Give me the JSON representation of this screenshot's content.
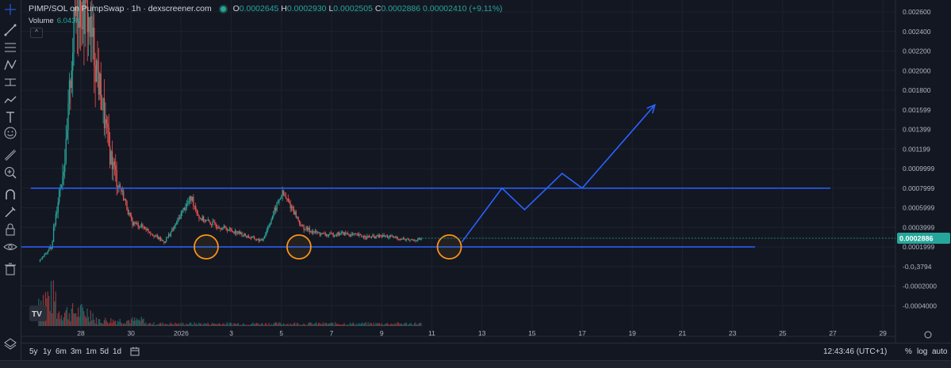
{
  "header": {
    "title": "PIMP/SOL on PumpSwap · 1h · dexscreener.com",
    "o_label": "O",
    "o_value": "0.0002645",
    "h_label": "H",
    "h_value": "0.0002930",
    "l_label": "L",
    "l_value": "0.0002505",
    "c_label": "C",
    "c_value": "0.0002886",
    "change": "0.00002410 (+9.11%)",
    "volume_label": "Volume",
    "volume_value": "6.043K",
    "collapse_glyph": "^"
  },
  "toolbar": {
    "icons": [
      "crosshair-icon",
      "trend-line-icon",
      "fib-retracement-icon",
      "pattern-icon",
      "prediction-icon",
      "path-icon",
      "text-icon",
      "emoji-icon",
      "ruler-icon",
      "zoom-in-icon",
      "magnet-icon",
      "lock-drawings-icon",
      "lock-icon",
      "eye-icon",
      "trash-icon",
      "layers-icon"
    ]
  },
  "bottom_bar": {
    "ranges": [
      "5y",
      "1y",
      "6m",
      "3m",
      "1m",
      "5d",
      "1d"
    ],
    "calendar_icon": "calendar-range-icon",
    "time": "12:43:46 (UTC+1)",
    "percent_label": "%",
    "log_label": "log",
    "auto_label": "auto"
  },
  "colors": {
    "background": "#131722",
    "up": "#26a69a",
    "down": "#ef5350",
    "drawing": "#2962ff",
    "circle": "#f7931a",
    "last_price_bg": "#26a69a"
  },
  "chart_data": {
    "type": "candlestick",
    "title": "PIMP/SOL on PumpSwap · 1h · dexscreener.com",
    "x_tick_labels": [
      "28",
      "30",
      "2026",
      "3",
      "5",
      "7",
      "9",
      "11",
      "13",
      "15",
      "17",
      "19",
      "21",
      "23",
      "25",
      "27",
      "29"
    ],
    "y_tick_labels": [
      "0.002600",
      "0.002400",
      "0.002200",
      "0.002000",
      "0.001800",
      "0.001599",
      "0.001399",
      "0.001199",
      "0.0009999",
      "0.0007999",
      "0.0005999",
      "0.0003999",
      "0.0001999",
      "-0.0₁3794",
      "-0.0002000",
      "-0.0004000"
    ],
    "y_ticks": [
      0.0026,
      0.0024,
      0.0022,
      0.002,
      0.0018,
      0.0016,
      0.0014,
      0.0012,
      0.001,
      0.0008,
      0.0006,
      0.0004,
      0.0002,
      0.0,
      -0.0002,
      -0.0004
    ],
    "last_price": "0.0002886",
    "last_price_value": 0.0002886,
    "x_range_days": [
      26.2,
      30.6
    ],
    "day_offsets": {
      "28": 28,
      "30": 30,
      "2026": 32,
      "3": 34,
      "5": 36,
      "7": 38,
      "9": 40,
      "11": 42,
      "13": 44,
      "15": 46,
      "17": 48,
      "19": 50,
      "21": 52,
      "23": 54,
      "25": 56,
      "27": 58,
      "29": 60
    },
    "price_path": [
      [
        26.3,
        5e-05
      ],
      [
        26.8,
        0.0002
      ],
      [
        27.1,
        0.00075
      ],
      [
        27.4,
        0.0012
      ],
      [
        27.6,
        0.0021
      ],
      [
        27.8,
        0.0027
      ],
      [
        28.2,
        0.0026
      ],
      [
        28.5,
        0.0022
      ],
      [
        28.8,
        0.0017
      ],
      [
        29.1,
        0.0012
      ],
      [
        29.4,
        0.0009
      ],
      [
        29.7,
        0.0007
      ],
      [
        30.0,
        0.00045
      ],
      [
        30.5,
        0.0004
      ],
      [
        31.0,
        0.0003
      ],
      [
        31.3,
        0.00025
      ],
      [
        31.7,
        0.0004
      ],
      [
        32.1,
        0.0006
      ],
      [
        32.4,
        0.0007
      ],
      [
        32.7,
        0.0005
      ],
      [
        33.1,
        0.00045
      ],
      [
        33.6,
        0.0004
      ],
      [
        34.2,
        0.00035
      ],
      [
        34.7,
        0.0003
      ],
      [
        35.2,
        0.00026
      ],
      [
        35.6,
        0.0005
      ],
      [
        36.0,
        0.00075
      ],
      [
        36.4,
        0.0006
      ],
      [
        36.8,
        0.0004
      ],
      [
        37.3,
        0.00035
      ],
      [
        37.8,
        0.00032
      ],
      [
        38.4,
        0.00034
      ],
      [
        38.9,
        0.00032
      ],
      [
        39.5,
        0.0003
      ],
      [
        40.1,
        0.00031
      ],
      [
        40.6,
        0.00029
      ],
      [
        41.1,
        0.00027
      ],
      [
        41.6,
        0.00028
      ]
    ],
    "resistance_level": 0.0008,
    "support_level": 0.0002,
    "support_touches_days": [
      33.0,
      36.7,
      42.7
    ],
    "projection_path": [
      [
        43.2,
        0.00025
      ],
      [
        44.8,
        0.0008
      ],
      [
        45.7,
        0.00058
      ],
      [
        47.2,
        0.00095
      ],
      [
        48.0,
        0.0008
      ],
      [
        50.9,
        0.00165
      ]
    ],
    "volume_label": "Volume",
    "volume_value": "6.043K"
  }
}
